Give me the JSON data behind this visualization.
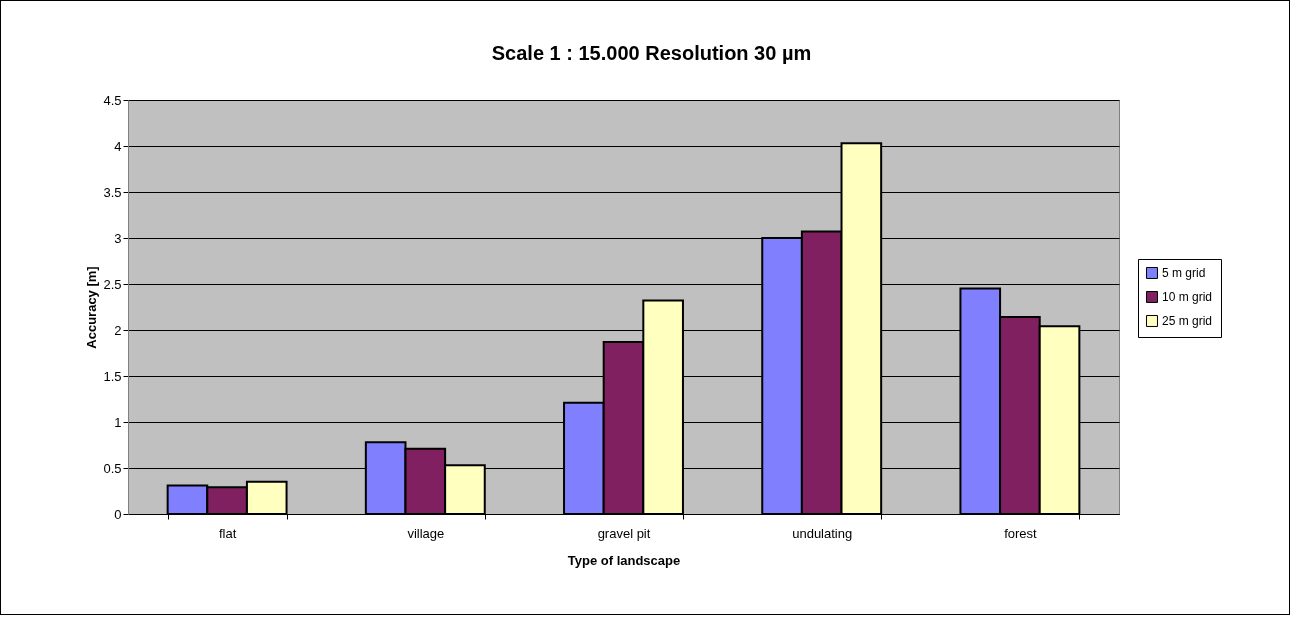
{
  "chart_data": {
    "type": "bar",
    "title": "Scale 1 : 15.000          Resolution 30 µm",
    "xlabel": "Type of landscape",
    "ylabel": "Accuracy [m]",
    "categories": [
      "flat",
      "village",
      "gravel pit",
      "undulating",
      "forest"
    ],
    "series": [
      {
        "name": "5 m grid",
        "color": "#8080ff",
        "values": [
          0.31,
          0.78,
          1.21,
          3.0,
          2.45
        ]
      },
      {
        "name": "10 m grid",
        "color": "#802060",
        "values": [
          0.29,
          0.71,
          1.87,
          3.07,
          2.14
        ]
      },
      {
        "name": "25 m grid",
        "color": "#ffffc0",
        "values": [
          0.35,
          0.53,
          2.32,
          4.03,
          2.04
        ]
      }
    ],
    "ylim": [
      0,
      4.5
    ],
    "yticks": [
      0,
      0.5,
      1,
      1.5,
      2,
      2.5,
      3,
      3.5,
      4,
      4.5
    ],
    "grid": "y",
    "legend": "right"
  }
}
